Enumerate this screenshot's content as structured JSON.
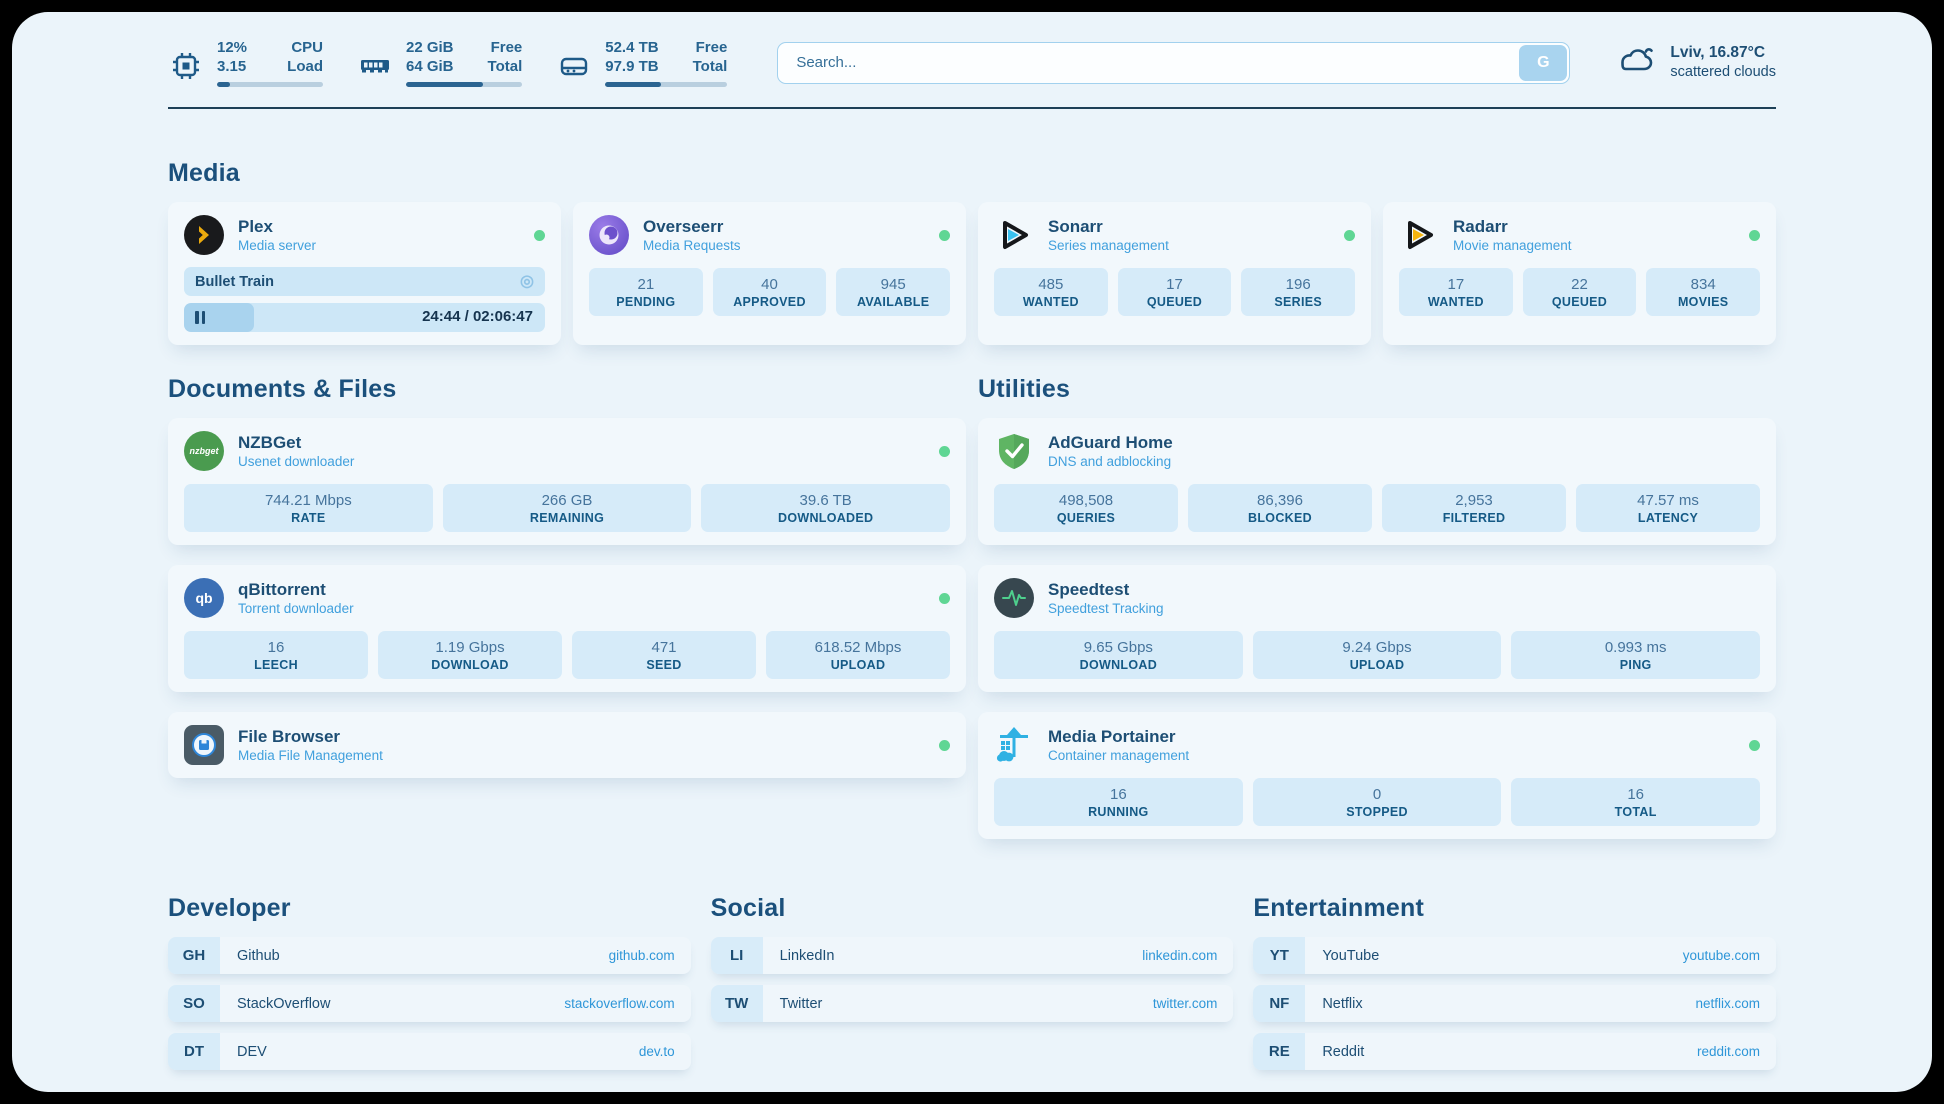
{
  "header": {
    "hw_stats": [
      {
        "icon": "cpu-icon",
        "value_top": "12%",
        "value_bottom": "3.15",
        "label_top": "CPU",
        "label_bottom": "Load",
        "progress_pct": 12
      },
      {
        "icon": "ram-icon",
        "value_top": "22 GiB",
        "value_bottom": "64 GiB",
        "label_top": "Free",
        "label_bottom": "Total",
        "progress_pct": 66
      },
      {
        "icon": "disk-icon",
        "value_top": "52.4 TB",
        "value_bottom": "97.9 TB",
        "label_top": "Free",
        "label_bottom": "Total",
        "progress_pct": 46
      }
    ],
    "search": {
      "placeholder": "Search...",
      "button_label": "G"
    },
    "weather": {
      "icon": "cloud-icon",
      "location": "Lviv, 16.87°C",
      "condition": "scattered clouds"
    }
  },
  "media": {
    "title": "Media",
    "cards": [
      {
        "name": "Plex",
        "desc": "Media server",
        "icon": "plex-icon",
        "status": "online",
        "now_playing": {
          "title": "Bullet Train",
          "time": "24:44 / 02:06:47",
          "progress_pct": 19.5,
          "state": "paused"
        }
      },
      {
        "name": "Overseerr",
        "desc": "Media Requests",
        "icon": "overseerr-icon",
        "status": "online",
        "stats": [
          {
            "value": "21",
            "label": "PENDING"
          },
          {
            "value": "40",
            "label": "APPROVED"
          },
          {
            "value": "945",
            "label": "AVAILABLE"
          }
        ]
      },
      {
        "name": "Sonarr",
        "desc": "Series management",
        "icon": "sonarr-icon",
        "status": "online",
        "stats": [
          {
            "value": "485",
            "label": "WANTED"
          },
          {
            "value": "17",
            "label": "QUEUED"
          },
          {
            "value": "196",
            "label": "SERIES"
          }
        ]
      },
      {
        "name": "Radarr",
        "desc": "Movie management",
        "icon": "radarr-icon",
        "status": "online",
        "stats": [
          {
            "value": "17",
            "label": "WANTED"
          },
          {
            "value": "22",
            "label": "QUEUED"
          },
          {
            "value": "834",
            "label": "MOVIES"
          }
        ]
      }
    ]
  },
  "documents": {
    "title": "Documents & Files",
    "cards": [
      {
        "name": "NZBGet",
        "desc": "Usenet downloader",
        "icon": "nzbget-icon",
        "status": "online",
        "stats": [
          {
            "value": "744.21 Mbps",
            "label": "RATE"
          },
          {
            "value": "266 GB",
            "label": "REMAINING"
          },
          {
            "value": "39.6 TB",
            "label": "DOWNLOADED"
          }
        ]
      },
      {
        "name": "qBittorrent",
        "desc": "Torrent downloader",
        "icon": "qbittorrent-icon",
        "status": "online",
        "stats": [
          {
            "value": "16",
            "label": "LEECH"
          },
          {
            "value": "1.19 Gbps",
            "label": "DOWNLOAD"
          },
          {
            "value": "471",
            "label": "SEED"
          },
          {
            "value": "618.52 Mbps",
            "label": "UPLOAD"
          }
        ]
      },
      {
        "name": "File Browser",
        "desc": "Media File Management",
        "icon": "filebrowser-icon",
        "status": "online"
      }
    ]
  },
  "utilities": {
    "title": "Utilities",
    "cards": [
      {
        "name": "AdGuard Home",
        "desc": "DNS and adblocking",
        "icon": "adguard-icon",
        "stats": [
          {
            "value": "498,508",
            "label": "QUERIES"
          },
          {
            "value": "86,396",
            "label": "BLOCKED"
          },
          {
            "value": "2,953",
            "label": "FILTERED"
          },
          {
            "value": "47.57 ms",
            "label": "LATENCY"
          }
        ]
      },
      {
        "name": "Speedtest",
        "desc": "Speedtest Tracking",
        "icon": "speedtest-icon",
        "stats": [
          {
            "value": "9.65 Gbps",
            "label": "DOWNLOAD"
          },
          {
            "value": "9.24 Gbps",
            "label": "UPLOAD"
          },
          {
            "value": "0.993 ms",
            "label": "PING"
          }
        ]
      },
      {
        "name": "Media Portainer",
        "desc": "Container management",
        "icon": "portainer-icon",
        "status": "online",
        "stats": [
          {
            "value": "16",
            "label": "RUNNING"
          },
          {
            "value": "0",
            "label": "STOPPED"
          },
          {
            "value": "16",
            "label": "TOTAL"
          }
        ]
      }
    ]
  },
  "bookmarks": [
    {
      "title": "Developer",
      "links": [
        {
          "tag": "GH",
          "name": "Github",
          "url": "github.com"
        },
        {
          "tag": "SO",
          "name": "StackOverflow",
          "url": "stackoverflow.com"
        },
        {
          "tag": "DT",
          "name": "DEV",
          "url": "dev.to"
        }
      ]
    },
    {
      "title": "Social",
      "links": [
        {
          "tag": "LI",
          "name": "LinkedIn",
          "url": "linkedin.com"
        },
        {
          "tag": "TW",
          "name": "Twitter",
          "url": "twitter.com"
        }
      ]
    },
    {
      "title": "Entertainment",
      "links": [
        {
          "tag": "YT",
          "name": "YouTube",
          "url": "youtube.com"
        },
        {
          "tag": "NF",
          "name": "Netflix",
          "url": "netflix.com"
        },
        {
          "tag": "RE",
          "name": "Reddit",
          "url": "reddit.com"
        }
      ]
    }
  ],
  "colors": {
    "panel_bg": "#ebf4fa",
    "card_bg": "#f2f8fc",
    "stat_box_bg": "#d6ebf9",
    "accent_navy": "#1d4e74",
    "accent_blue": "#41a0dd",
    "status_green": "#5fd694",
    "url_blue": "#2e96d8",
    "progress_fill": "#2b6491"
  }
}
